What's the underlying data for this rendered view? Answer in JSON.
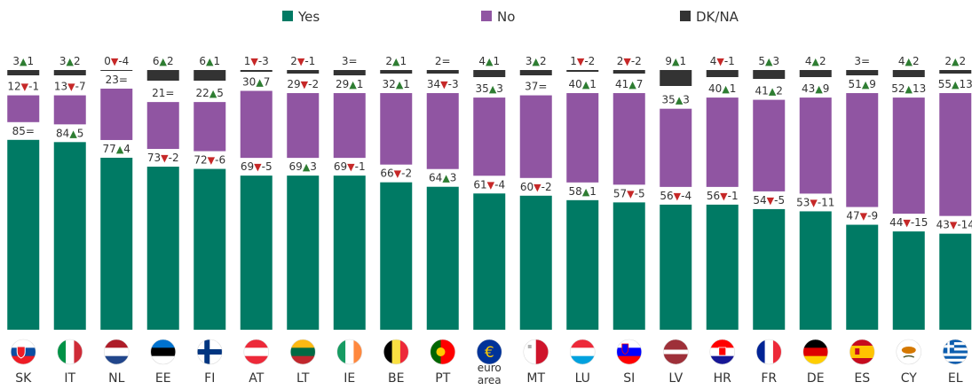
{
  "chart_data": {
    "type": "bar",
    "stacked": true,
    "categories": [
      "SK",
      "IT",
      "NL",
      "EE",
      "FI",
      "AT",
      "LT",
      "IE",
      "BE",
      "PT",
      "euro area",
      "MT",
      "LU",
      "SI",
      "LV",
      "HR",
      "FR",
      "DE",
      "ES",
      "CY",
      "EL"
    ],
    "series": [
      {
        "name": "Yes",
        "color": "#007A64",
        "values": [
          85,
          84,
          77,
          73,
          72,
          69,
          69,
          69,
          66,
          64,
          61,
          60,
          58,
          57,
          56,
          56,
          54,
          53,
          47,
          44,
          43
        ],
        "changes": [
          "=",
          "▲5",
          "▲4",
          "▼-2",
          "▼-6",
          "▼-5",
          "▲3",
          "▼-1",
          "▼-2",
          "▲3",
          "▼-4",
          "▼-2",
          "▲1",
          "▼-5",
          "▼-4",
          "▼-1",
          "▼-5",
          "▼-11",
          "▼-9",
          "▼-15",
          "▼-14"
        ]
      },
      {
        "name": "No",
        "color": "#9055A2",
        "values": [
          12,
          13,
          23,
          21,
          22,
          30,
          29,
          29,
          32,
          34,
          35,
          37,
          40,
          41,
          35,
          40,
          41,
          43,
          51,
          52,
          55
        ],
        "changes": [
          "▼-1",
          "▼-7",
          "=",
          "=",
          "▲5",
          "▲7",
          "▼-2",
          "▲1",
          "▲1",
          "▼-3",
          "▲3",
          "=",
          "▲1",
          "▲7",
          "▲3",
          "▲1",
          "▲2",
          "▲9",
          "▲9",
          "▲13",
          "▲13"
        ]
      },
      {
        "name": "DK/NA",
        "color": "#333333",
        "values": [
          3,
          3,
          0,
          6,
          6,
          1,
          2,
          3,
          2,
          2,
          4,
          3,
          1,
          2,
          9,
          4,
          5,
          4,
          3,
          4,
          2
        ],
        "changes": [
          "▲1",
          "▲2",
          "▼-4",
          "▲2",
          "▲1",
          "▼-3",
          "▼-1",
          "=",
          "▲1",
          "=",
          "▲1",
          "▲2",
          "▼-2",
          "▼-2",
          "▲1",
          "▼-1",
          "▲3",
          "▲2",
          "=",
          "▲2",
          "▲2"
        ]
      }
    ],
    "legend": [
      "Yes",
      "No",
      "DK/NA"
    ],
    "legend_position": "top",
    "flags": [
      "flag-sk-icon",
      "flag-it-icon",
      "flag-nl-icon",
      "flag-ee-icon",
      "flag-fi-icon",
      "flag-at-icon",
      "flag-lt-icon",
      "flag-ie-icon",
      "flag-be-icon",
      "flag-pt-icon",
      "flag-eu-icon",
      "flag-mt-icon",
      "flag-lu-icon",
      "flag-si-icon",
      "flag-lv-icon",
      "flag-hr-icon",
      "flag-fr-icon",
      "flag-de-icon",
      "flag-es-icon",
      "flag-cy-icon",
      "flag-gr-icon"
    ],
    "up_color": "#2E7D32",
    "down_color": "#C62828"
  }
}
